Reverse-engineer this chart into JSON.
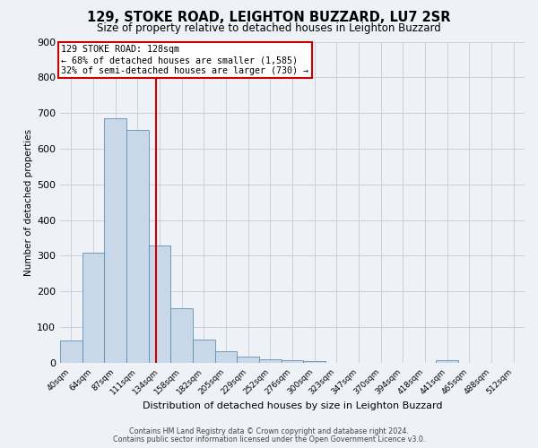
{
  "title1": "129, STOKE ROAD, LEIGHTON BUZZARD, LU7 2SR",
  "title2": "Size of property relative to detached houses in Leighton Buzzard",
  "xlabel": "Distribution of detached houses by size in Leighton Buzzard",
  "ylabel": "Number of detached properties",
  "bar_labels": [
    "40sqm",
    "64sqm",
    "87sqm",
    "111sqm",
    "134sqm",
    "158sqm",
    "182sqm",
    "205sqm",
    "229sqm",
    "252sqm",
    "276sqm",
    "300sqm",
    "323sqm",
    "347sqm",
    "370sqm",
    "394sqm",
    "418sqm",
    "441sqm",
    "465sqm",
    "488sqm",
    "512sqm"
  ],
  "bar_values": [
    63,
    310,
    685,
    653,
    328,
    153,
    65,
    32,
    17,
    10,
    7,
    5,
    0,
    0,
    0,
    0,
    0,
    8,
    0,
    0,
    0
  ],
  "bar_color": "#c8d8e8",
  "bar_edge_color": "#6090b0",
  "property_label": "129 STOKE ROAD: 128sqm",
  "annotation_line1": "← 68% of detached houses are smaller (1,585)",
  "annotation_line2": "32% of semi-detached houses are larger (730) →",
  "vline_x": 3.82,
  "vline_color": "#cc0000",
  "ylim": [
    0,
    900
  ],
  "yticks": [
    0,
    100,
    200,
    300,
    400,
    500,
    600,
    700,
    800,
    900
  ],
  "footer1": "Contains HM Land Registry data © Crown copyright and database right 2024.",
  "footer2": "Contains public sector information licensed under the Open Government Licence v3.0.",
  "bg_color": "#eef2f7",
  "grid_color": "#c8d0de",
  "title1_fontsize": 10.5,
  "title2_fontsize": 8.5,
  "annotation_box_color": "#ffffff",
  "annotation_box_edge": "#cc0000"
}
